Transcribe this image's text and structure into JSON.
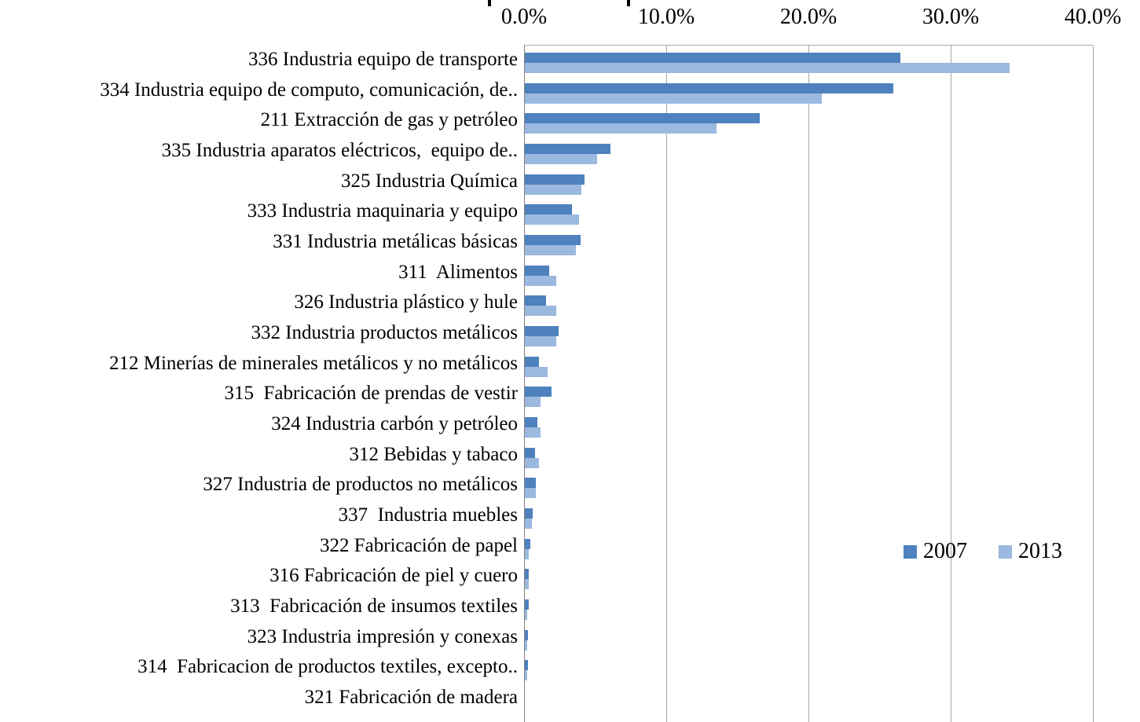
{
  "chart_data": {
    "type": "bar",
    "orientation": "horizontal",
    "title": "",
    "xlabel": "",
    "ylabel": "",
    "x_axis": {
      "position": "top",
      "min": 0,
      "max": 40,
      "tick_step": 10,
      "ticks": [
        "0.0%",
        "10.0%",
        "20.0%",
        "30.0%",
        "40.0%"
      ]
    },
    "grid": true,
    "legend_position": "middle-right",
    "categories": [
      "336 Industria equipo de transporte",
      "334 Industria equipo de computo, comunicación, de..",
      "211 Extracción de gas y petróleo",
      "335 Industria aparatos eléctricos,  equipo de..",
      "325 Industria Química",
      "333 Industria maquinaria y equipo",
      "331 Industria metálicas básicas",
      "311  Alimentos",
      "326 Industria plástico y hule",
      "332 Industria productos metálicos",
      "212 Minerías de minerales metálicos y no metálicos",
      "315  Fabricación de prendas de vestir",
      "324 Industria carbón y petróleo",
      "312 Bebidas y tabaco",
      "327 Industria de productos no metálicos",
      "337  Industria muebles",
      "322 Fabricación de papel",
      "316 Fabricación de piel y cuero",
      "313  Fabricación de insumos textiles",
      "323 Industria impresión y conexas",
      "314  Fabricacion de productos textiles, excepto..",
      "321 Fabricación de madera"
    ],
    "series": [
      {
        "name": "2007",
        "color": "#4e81bd",
        "values": [
          26.4,
          25.9,
          16.5,
          6.0,
          4.2,
          3.3,
          3.9,
          1.7,
          1.5,
          2.4,
          1.0,
          1.9,
          0.9,
          0.7,
          0.75,
          0.55,
          0.4,
          0.3,
          0.3,
          0.2,
          0.2,
          0.0
        ]
      },
      {
        "name": "2013",
        "color": "#9bb9df",
        "values": [
          34.1,
          20.9,
          13.5,
          5.1,
          4.0,
          3.8,
          3.6,
          2.2,
          2.2,
          2.2,
          1.6,
          1.1,
          1.1,
          1.0,
          0.8,
          0.5,
          0.3,
          0.25,
          0.15,
          0.15,
          0.15,
          0.0
        ]
      }
    ],
    "colors": {
      "series_2007": "#4e81bd",
      "series_2013": "#9bb9df",
      "gridline": "#a6a6a6",
      "axis_line": "#808080",
      "text": "#000000",
      "background": "#ffffff"
    }
  }
}
